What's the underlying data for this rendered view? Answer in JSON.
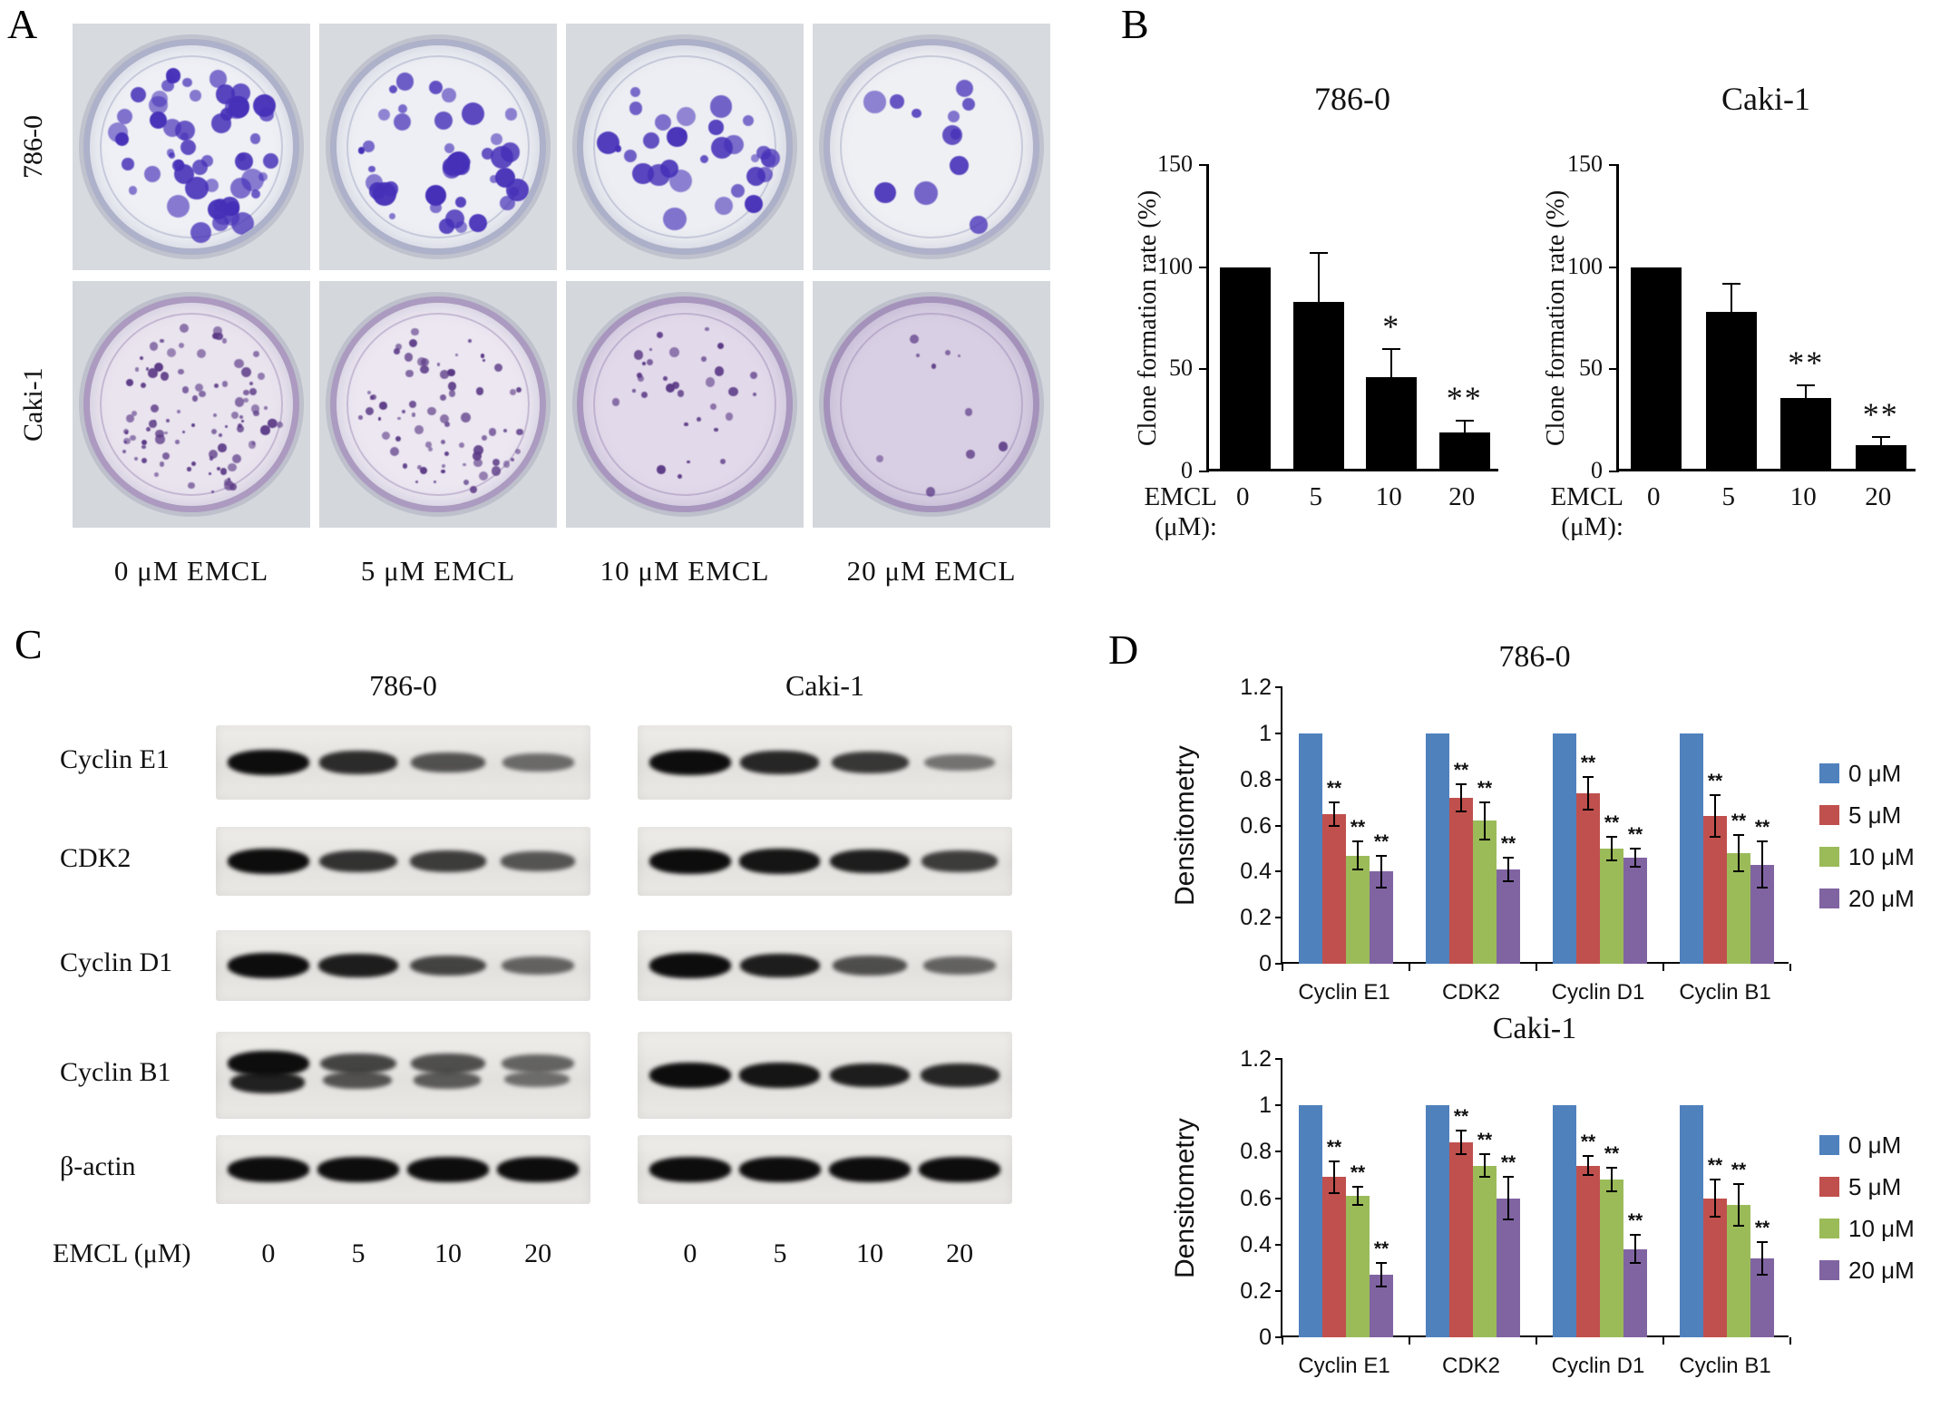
{
  "figure": {
    "panel_a": {
      "label": "A",
      "rows": [
        {
          "label": "786-0",
          "colony_counts": [
            55,
            42,
            30,
            12
          ],
          "colony_color": "#4630b8",
          "photo_bg": "#d7dade",
          "rim_color": "rgba(120,125,165,0.55)",
          "dish_fills": [
            "#eef0f5",
            "#edeff4",
            "#eceef3",
            "#eff0f4"
          ],
          "size_range": [
            7,
            26
          ]
        },
        {
          "label": "Caki-1",
          "colony_counts": [
            95,
            70,
            32,
            10
          ],
          "colony_color": "#5b3a86",
          "photo_bg": "#d4d7dc",
          "rim_color": "rgba(130,105,160,0.6)",
          "dish_fills": [
            "#eae4ef",
            "#ece7f1",
            "#e2d9ea",
            "#d9cfe4"
          ],
          "size_range": [
            3,
            11
          ]
        }
      ],
      "column_labels": [
        "0 μM  EMCL",
        "5 μM  EMCL",
        "10 μM  EMCL",
        "20 μM  EMCL"
      ]
    },
    "panel_b": {
      "label": "B"
    },
    "panel_c": {
      "label": "C",
      "group_labels": [
        "786-0",
        "Caki-1"
      ],
      "dose_label": "EMCL (μM)",
      "doses": [
        "0",
        "5",
        "10",
        "20"
      ],
      "blots": [
        {
          "protein": "Cyclin E1",
          "groups": [
            [
              1,
              0.82,
              0.6,
              0.45
            ],
            [
              1,
              0.85,
              0.75,
              0.4
            ]
          ]
        },
        {
          "protein": "CDK2",
          "groups": [
            [
              1,
              0.78,
              0.72,
              0.58
            ],
            [
              1,
              0.95,
              0.9,
              0.72
            ]
          ]
        },
        {
          "protein": "Cyclin D1",
          "groups": [
            [
              1,
              0.9,
              0.68,
              0.5
            ],
            [
              1,
              0.9,
              0.62,
              0.5
            ]
          ]
        },
        {
          "protein": "Cyclin B1",
          "double_first_group": true,
          "groups": [
            [
              1,
              0.68,
              0.62,
              0.5
            ],
            [
              1,
              0.95,
              0.9,
              0.85
            ]
          ]
        },
        {
          "protein": "β-actin",
          "uniform": true,
          "groups": [
            [
              1,
              1,
              1,
              1
            ],
            [
              1,
              1,
              1,
              1
            ]
          ]
        }
      ]
    },
    "panel_d": {
      "label": "D"
    }
  },
  "chart_data": [
    {
      "id": "clone-formation-786-0",
      "type": "bar",
      "title": "786-0",
      "ylabel": "Clone formation rate (%)",
      "x_prefix": "EMCL (μM):",
      "categories": [
        "0",
        "5",
        "10",
        "20"
      ],
      "values": [
        100,
        83,
        46,
        19
      ],
      "errors": [
        0,
        24,
        14,
        6
      ],
      "annotations": [
        "",
        "",
        "*",
        "**"
      ],
      "ylim": [
        0,
        150
      ],
      "yticks": [
        0,
        50,
        100,
        150
      ],
      "bar_color": "#000000",
      "grid": false
    },
    {
      "id": "clone-formation-caki-1",
      "type": "bar",
      "title": "Caki-1",
      "ylabel": "Clone formation rate (%)",
      "x_prefix": "EMCL (μM):",
      "categories": [
        "0",
        "5",
        "10",
        "20"
      ],
      "values": [
        100,
        78,
        36,
        13
      ],
      "errors": [
        0,
        14,
        6,
        4
      ],
      "annotations": [
        "",
        "",
        "**",
        "**"
      ],
      "ylim": [
        0,
        150
      ],
      "yticks": [
        0,
        50,
        100,
        150
      ],
      "bar_color": "#000000",
      "grid": false
    },
    {
      "id": "densitometry-786-0",
      "type": "grouped_bar",
      "title": "786-0",
      "ylabel": "Densitometry",
      "categories": [
        "Cyclin E1",
        "CDK2",
        "Cyclin D1",
        "Cyclin B1"
      ],
      "series": [
        {
          "name": "0 μM",
          "color": "#4F81BD",
          "values": [
            1,
            1,
            1,
            1
          ],
          "errors": [
            0,
            0,
            0,
            0
          ],
          "annotations": [
            "",
            "",
            "",
            ""
          ]
        },
        {
          "name": "5 μM",
          "color": "#C0504D",
          "values": [
            0.65,
            0.72,
            0.74,
            0.64
          ],
          "errors": [
            0.05,
            0.06,
            0.07,
            0.09
          ],
          "annotations": [
            "**",
            "**",
            "**",
            "**"
          ]
        },
        {
          "name": "10 μM",
          "color": "#9BBB59",
          "values": [
            0.47,
            0.62,
            0.5,
            0.48
          ],
          "errors": [
            0.06,
            0.08,
            0.05,
            0.08
          ],
          "annotations": [
            "**",
            "**",
            "**",
            "**"
          ]
        },
        {
          "name": "20 μM",
          "color": "#8064A2",
          "values": [
            0.4,
            0.41,
            0.46,
            0.43
          ],
          "errors": [
            0.07,
            0.05,
            0.04,
            0.1
          ],
          "annotations": [
            "**",
            "**",
            "**",
            "**"
          ]
        }
      ],
      "ylim": [
        0,
        1.2
      ],
      "yticks": [
        0,
        0.2,
        0.4,
        0.6,
        0.8,
        1,
        1.2
      ],
      "legend_position": "right",
      "grid": false
    },
    {
      "id": "densitometry-caki-1",
      "type": "grouped_bar",
      "title": "Caki-1",
      "ylabel": "Densitometry",
      "categories": [
        "Cyclin E1",
        "CDK2",
        "Cyclin D1",
        "Cyclin B1"
      ],
      "series": [
        {
          "name": "0 μM",
          "color": "#4F81BD",
          "values": [
            1,
            1,
            1,
            1
          ],
          "errors": [
            0,
            0,
            0,
            0
          ],
          "annotations": [
            "",
            "",
            "",
            ""
          ]
        },
        {
          "name": "5 μM",
          "color": "#C0504D",
          "values": [
            0.69,
            0.84,
            0.74,
            0.6
          ],
          "errors": [
            0.07,
            0.05,
            0.04,
            0.08
          ],
          "annotations": [
            "**",
            "**",
            "**",
            "**"
          ]
        },
        {
          "name": "10 μM",
          "color": "#9BBB59",
          "values": [
            0.61,
            0.74,
            0.68,
            0.57
          ],
          "errors": [
            0.04,
            0.05,
            0.05,
            0.09
          ],
          "annotations": [
            "**",
            "**",
            "**",
            "**"
          ]
        },
        {
          "name": "20 μM",
          "color": "#8064A2",
          "values": [
            0.27,
            0.6,
            0.38,
            0.34
          ],
          "errors": [
            0.05,
            0.09,
            0.06,
            0.07
          ],
          "annotations": [
            "**",
            "**",
            "**",
            "**"
          ]
        }
      ],
      "ylim": [
        0,
        1.2
      ],
      "yticks": [
        0,
        0.2,
        0.4,
        0.6,
        0.8,
        1,
        1.2
      ],
      "legend_position": "right",
      "grid": false
    }
  ]
}
